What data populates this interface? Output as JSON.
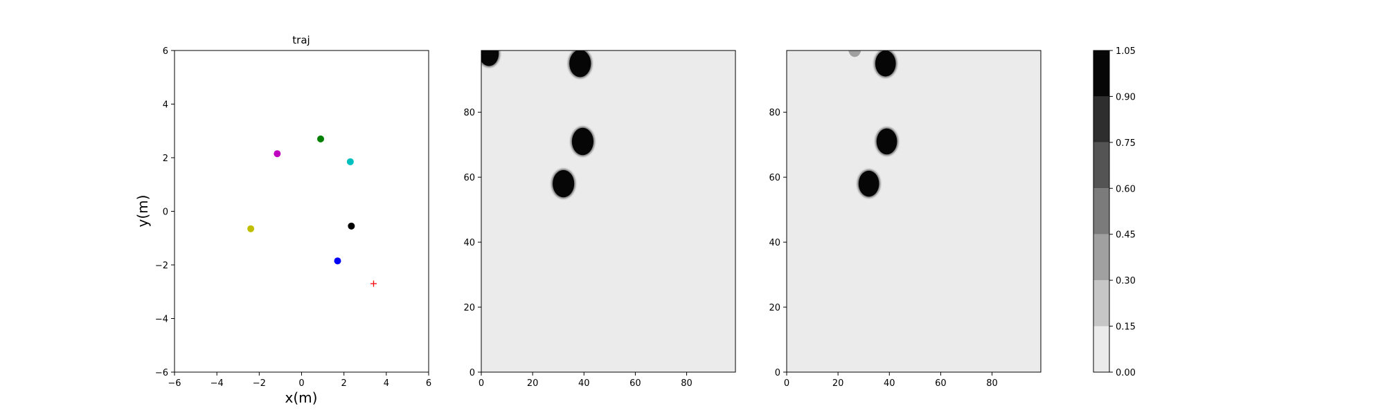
{
  "chart_data": [
    {
      "type": "scatter",
      "title": "traj",
      "xlabel": "x(m)",
      "ylabel": "y(m)",
      "xlim": [
        -6,
        6
      ],
      "ylim": [
        -6,
        6
      ],
      "xticks": [
        -6,
        -4,
        -2,
        0,
        2,
        4,
        6
      ],
      "yticks": [
        -6,
        -4,
        -2,
        0,
        2,
        4,
        6
      ],
      "grid": false,
      "points": [
        {
          "x": 0.9,
          "y": 2.7,
          "color": "#008000",
          "marker": "circle"
        },
        {
          "x": -1.15,
          "y": 2.15,
          "color": "#bf00bf",
          "marker": "circle"
        },
        {
          "x": 2.3,
          "y": 1.85,
          "color": "#00bfbf",
          "marker": "circle"
        },
        {
          "x": 2.35,
          "y": -0.55,
          "color": "#000000",
          "marker": "circle"
        },
        {
          "x": -2.4,
          "y": -0.65,
          "color": "#bfbf00",
          "marker": "circle"
        },
        {
          "x": 1.7,
          "y": -1.85,
          "color": "#0000ff",
          "marker": "circle"
        },
        {
          "x": 3.4,
          "y": -2.7,
          "color": "#ff0000",
          "marker": "plus"
        }
      ]
    },
    {
      "type": "heatmap",
      "xlim": [
        0,
        99
      ],
      "ylim": [
        0,
        99
      ],
      "xticks": [
        0,
        20,
        40,
        60,
        80
      ],
      "yticks": [
        0,
        20,
        40,
        60,
        80
      ],
      "background_value": 0.05,
      "blobs": [
        {
          "cx": 3,
          "cy": 98,
          "r": 3.8,
          "value": 1.0
        },
        {
          "cx": 38.5,
          "cy": 95,
          "r": 4.2,
          "value": 1.0
        },
        {
          "cx": 39.5,
          "cy": 71,
          "r": 4.2,
          "value": 1.0
        },
        {
          "cx": 32,
          "cy": 58,
          "r": 4.2,
          "value": 1.0
        }
      ]
    },
    {
      "type": "heatmap",
      "xlim": [
        0,
        99
      ],
      "ylim": [
        0,
        99
      ],
      "xticks": [
        0,
        20,
        40,
        60,
        80
      ],
      "yticks": [
        0,
        20,
        40,
        60,
        80
      ],
      "background_value": 0.05,
      "blobs": [
        {
          "cx": 26.5,
          "cy": 99.5,
          "r": 2.5,
          "value": 0.3
        },
        {
          "cx": 38.5,
          "cy": 95,
          "r": 4.0,
          "value": 1.0
        },
        {
          "cx": 39,
          "cy": 71,
          "r": 4.0,
          "value": 1.0
        },
        {
          "cx": 32,
          "cy": 58,
          "r": 4.0,
          "value": 1.0
        }
      ]
    },
    {
      "type": "colorbar",
      "levels": [
        0.0,
        0.15,
        0.3,
        0.45,
        0.6,
        0.75,
        0.9,
        1.05
      ],
      "tick_labels": [
        "0.00",
        "0.15",
        "0.30",
        "0.45",
        "0.60",
        "0.75",
        "0.90",
        "1.05"
      ],
      "band_colors": [
        "#ebebeb",
        "#c6c6c6",
        "#a0a0a0",
        "#7b7b7b",
        "#545454",
        "#2e2e2e",
        "#060606"
      ]
    }
  ]
}
